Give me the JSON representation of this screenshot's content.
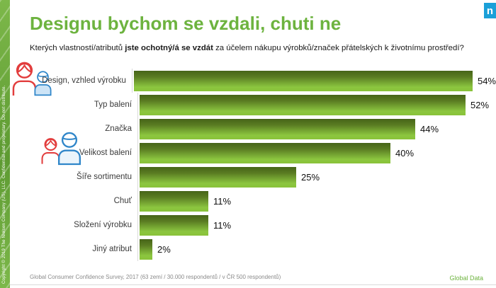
{
  "logo": {
    "letter": "n"
  },
  "sidebar": {
    "copyright": "Copyright © 2019 The Nielsen Company (US), LLC. Confidential and proprietary. Do not distribute."
  },
  "header": {
    "title": "Designu bychom se vzdali, chuti ne",
    "subtitle_prefix": "Kterých vlastností/atributů ",
    "subtitle_bold": "jste ochotný/á se vzdát",
    "subtitle_suffix": " za účelem nákupu výrobků/značek přátelských k životnímu prostředí?"
  },
  "chart_data": {
    "type": "bar",
    "orientation": "horizontal",
    "categories": [
      "Design, vzhled výrobku",
      "Typ balení",
      "Značka",
      "Velikost balení",
      "Šíře sortimentu",
      "Chuť",
      "Složení výrobku",
      "Jiný atribut"
    ],
    "values": [
      54,
      52,
      44,
      40,
      25,
      11,
      11,
      2
    ],
    "value_labels": [
      "54%",
      "52%",
      "44%",
      "40%",
      "25%",
      "11%",
      "11%",
      "2%"
    ],
    "xlim": [
      0,
      56
    ],
    "grid": false,
    "legend": "none",
    "bar_gradient_top": "#466418",
    "bar_gradient_bottom": "#8cc63f"
  },
  "footer": {
    "source": "Global Consumer Confidence Survey, 2017 (63 zemí / 30.000 respondentů / v ČR 500 respondentů)",
    "right_label": "Global Data"
  },
  "colors": {
    "accent": "#6db33f",
    "logo-blue": "#1ba0d8",
    "strip-light": "#7db84a",
    "strip-dark": "#5d9a31",
    "icon-red": "#e23d3d",
    "icon-blue": "#2f86c9"
  }
}
